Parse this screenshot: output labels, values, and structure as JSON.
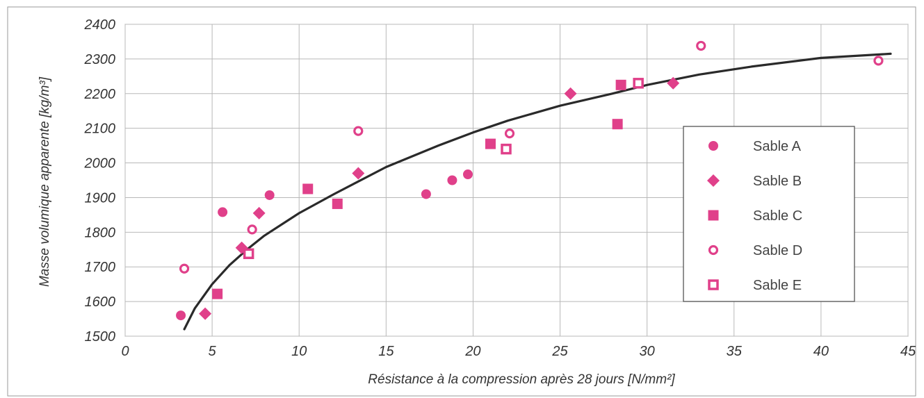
{
  "chart_data": {
    "type": "scatter",
    "xlabel": "Résistance à la compression après 28 jours [N/mm²]",
    "ylabel": "Masse volumique apparente [kg/m³]",
    "xlim": [
      0,
      45
    ],
    "ylim": [
      1500,
      2400
    ],
    "x_ticks": [
      0,
      5,
      10,
      15,
      20,
      25,
      30,
      35,
      40,
      45
    ],
    "y_ticks": [
      1500,
      1600,
      1700,
      1800,
      1900,
      2000,
      2100,
      2200,
      2300,
      2400
    ],
    "grid": true,
    "legend_position": "right",
    "marker_color": "#e0408a",
    "curve_color": "#2a2a2a",
    "series": [
      {
        "name": "Sable A",
        "marker": "circle",
        "points": [
          [
            3.2,
            1560
          ],
          [
            5.6,
            1858
          ],
          [
            8.3,
            1907
          ],
          [
            17.3,
            1910
          ],
          [
            18.8,
            1950
          ],
          [
            19.7,
            1967
          ]
        ]
      },
      {
        "name": "Sable B",
        "marker": "diamond",
        "points": [
          [
            4.6,
            1565
          ],
          [
            6.7,
            1755
          ],
          [
            7.7,
            1855
          ],
          [
            13.4,
            1970
          ],
          [
            25.6,
            2200
          ],
          [
            31.5,
            2230
          ]
        ]
      },
      {
        "name": "Sable C",
        "marker": "square",
        "points": [
          [
            5.3,
            1622
          ],
          [
            10.5,
            1925
          ],
          [
            12.2,
            1882
          ],
          [
            21.0,
            2055
          ],
          [
            28.3,
            2112
          ],
          [
            28.5,
            2225
          ]
        ]
      },
      {
        "name": "Sable D",
        "marker": "ring",
        "points": [
          [
            3.4,
            1695
          ],
          [
            7.3,
            1808
          ],
          [
            13.4,
            2092
          ],
          [
            22.1,
            2085
          ],
          [
            33.1,
            2338
          ],
          [
            43.3,
            2295
          ]
        ]
      },
      {
        "name": "Sable E",
        "marker": "hollow-square",
        "points": [
          [
            7.1,
            1738
          ],
          [
            21.9,
            2040
          ],
          [
            29.5,
            2230
          ]
        ]
      }
    ],
    "trend_curve": {
      "points": [
        [
          3.4,
          1520
        ],
        [
          4,
          1580
        ],
        [
          5,
          1650
        ],
        [
          6,
          1705
        ],
        [
          7,
          1750
        ],
        [
          8,
          1790
        ],
        [
          10,
          1855
        ],
        [
          12,
          1910
        ],
        [
          15,
          1988
        ],
        [
          18,
          2050
        ],
        [
          20,
          2088
        ],
        [
          22,
          2122
        ],
        [
          25,
          2165
        ],
        [
          28,
          2200
        ],
        [
          30,
          2225
        ],
        [
          33,
          2255
        ],
        [
          36,
          2278
        ],
        [
          40,
          2303
        ],
        [
          44,
          2315
        ]
      ]
    }
  }
}
